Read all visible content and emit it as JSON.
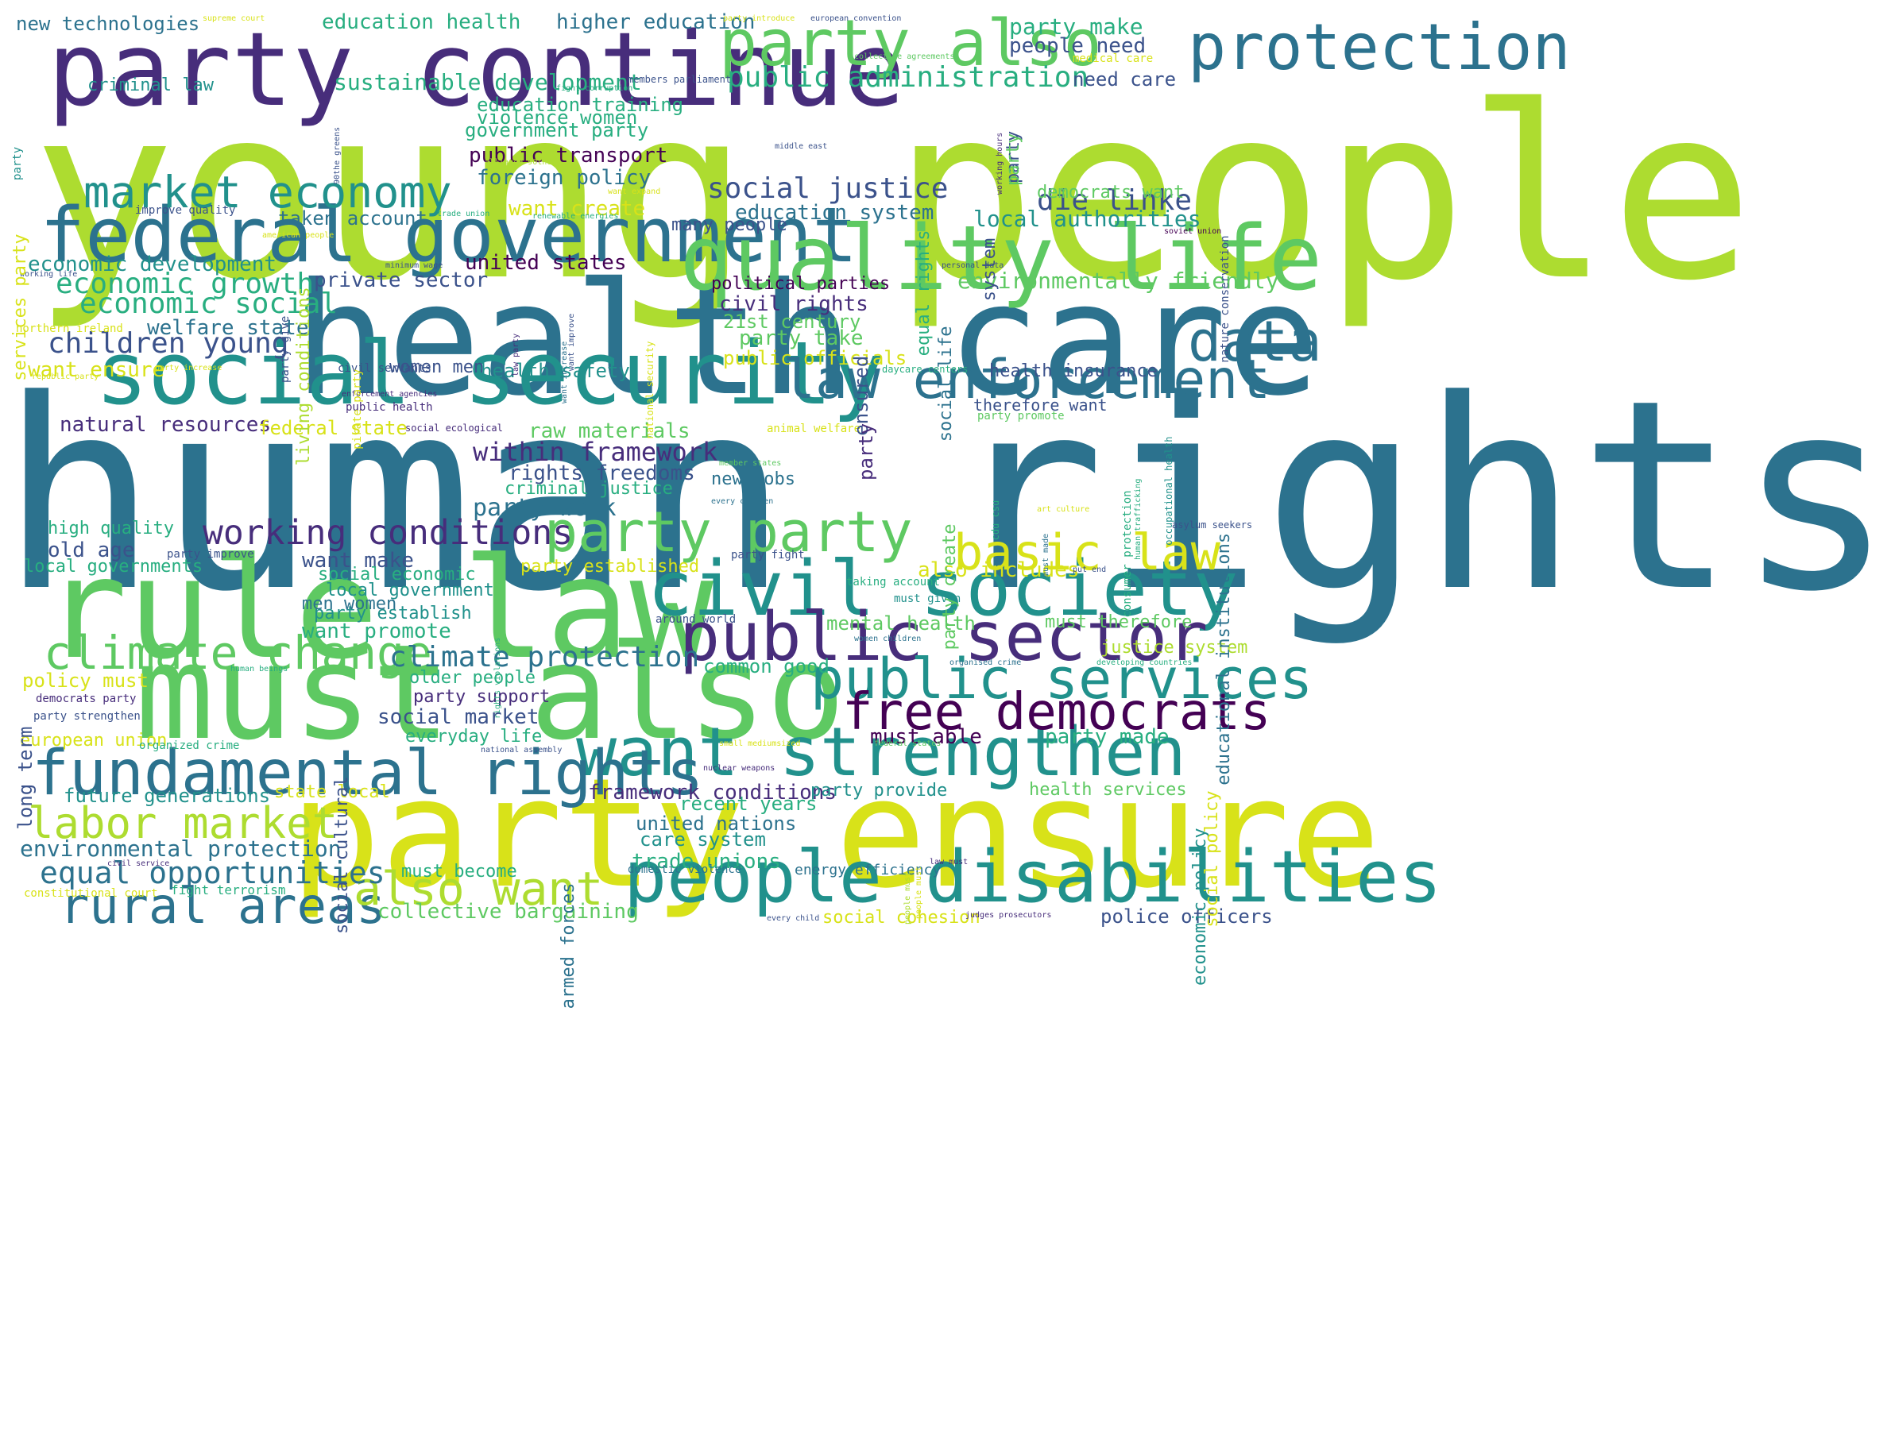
{
  "palette": {
    "p1": "#440154",
    "p2": "#472d7b",
    "p3": "#3b528b",
    "p4": "#2c728e",
    "p5": "#21918c",
    "p6": "#28ae80",
    "p7": "#5ec962",
    "p8": "#addc30",
    "p9": "#d8e219"
  },
  "words": [
    {
      "text": "young people",
      "size": 300,
      "c": "p8"
    },
    {
      "text": "human rights",
      "size": 330,
      "c": "p4"
    },
    {
      "text": "health care",
      "size": 195,
      "c": "p4"
    },
    {
      "text": "party ensure",
      "size": 190,
      "c": "p9"
    },
    {
      "text": "must also",
      "size": 165,
      "c": "p7"
    },
    {
      "text": "rule law",
      "size": 175,
      "c": "p7"
    },
    {
      "text": "party continue",
      "size": 128,
      "c": "p2"
    },
    {
      "text": "social security",
      "size": 110,
      "c": "p5"
    },
    {
      "text": "federal government",
      "size": 95,
      "c": "p4"
    },
    {
      "text": "quality life",
      "size": 112,
      "c": "p7"
    },
    {
      "text": "civil society",
      "size": 95,
      "c": "p5"
    },
    {
      "text": "people disabilities",
      "size": 90,
      "c": "p5"
    },
    {
      "text": "public sector",
      "size": 85,
      "c": "p2"
    },
    {
      "text": "party also",
      "size": 80,
      "c": "p7"
    },
    {
      "text": "want strengthen",
      "size": 85,
      "c": "p5"
    },
    {
      "text": "fundamental rights",
      "size": 78,
      "c": "p4"
    },
    {
      "text": "law enforcement",
      "size": 68,
      "c": "p4"
    },
    {
      "text": "protection",
      "size": 80,
      "c": "p4"
    },
    {
      "text": "data",
      "size": 70,
      "c": "p4"
    },
    {
      "text": "public services",
      "size": 70,
      "c": "p5"
    },
    {
      "text": "free democrats",
      "size": 64,
      "c": "p1"
    },
    {
      "text": "party party",
      "size": 70,
      "c": "p7"
    },
    {
      "text": "basic law",
      "size": 62,
      "c": "p9"
    },
    {
      "text": "market economy",
      "size": 55,
      "c": "p5"
    },
    {
      "text": "climate change",
      "size": 58,
      "c": "p7"
    },
    {
      "text": "rural areas",
      "size": 62,
      "c": "p4"
    },
    {
      "text": "labor market",
      "size": 54,
      "c": "p8"
    },
    {
      "text": "also want",
      "size": 58,
      "c": "p8"
    },
    {
      "text": "working conditions",
      "size": 43,
      "c": "p2"
    },
    {
      "text": "public administration",
      "size": 36,
      "c": "p6"
    },
    {
      "text": "social justice",
      "size": 36,
      "c": "p3"
    },
    {
      "text": "die linke",
      "size": 36,
      "c": "p3"
    },
    {
      "text": "economic growth",
      "size": 36,
      "c": "p6"
    },
    {
      "text": "economic social",
      "size": 36,
      "c": "p6"
    },
    {
      "text": "children young",
      "size": 36,
      "c": "p3"
    },
    {
      "text": "equal opportunities",
      "size": 38,
      "c": "p4"
    },
    {
      "text": "climate protection",
      "size": 36,
      "c": "p4"
    },
    {
      "text": "sustainable development",
      "size": 28,
      "c": "p6"
    },
    {
      "text": "environmentally friendly",
      "size": 28,
      "c": "p7"
    },
    {
      "text": "environmental protection",
      "size": 28,
      "c": "p4"
    },
    {
      "text": "party make",
      "size": 28,
      "c": "p6"
    },
    {
      "text": "people need",
      "size": 26,
      "c": "p3"
    },
    {
      "text": "need care",
      "size": 24,
      "c": "p3"
    },
    {
      "text": "new technologies",
      "size": 24,
      "c": "p4"
    },
    {
      "text": "education health",
      "size": 26,
      "c": "p6"
    },
    {
      "text": "higher education",
      "size": 26,
      "c": "p4"
    },
    {
      "text": "criminal law",
      "size": 22,
      "c": "p5"
    },
    {
      "text": "education training",
      "size": 24,
      "c": "p6"
    },
    {
      "text": "violence women",
      "size": 24,
      "c": "p6"
    },
    {
      "text": "government party",
      "size": 24,
      "c": "p6"
    },
    {
      "text": "public transport",
      "size": 26,
      "c": "p1"
    },
    {
      "text": "foreign policy",
      "size": 26,
      "c": "p4"
    },
    {
      "text": "want create",
      "size": 26,
      "c": "p9"
    },
    {
      "text": "education system",
      "size": 26,
      "c": "p4"
    },
    {
      "text": "local authorities",
      "size": 28,
      "c": "p5"
    },
    {
      "text": "many people",
      "size": 22,
      "c": "p3"
    },
    {
      "text": "taken account",
      "size": 24,
      "c": "p4"
    },
    {
      "text": "economic development",
      "size": 26,
      "c": "p5"
    },
    {
      "text": "united states",
      "size": 26,
      "c": "p1"
    },
    {
      "text": "private sector",
      "size": 26,
      "c": "p3"
    },
    {
      "text": "political parties",
      "size": 22,
      "c": "p1"
    },
    {
      "text": "civil rights",
      "size": 26,
      "c": "p2"
    },
    {
      "text": "21st century",
      "size": 24,
      "c": "p7"
    },
    {
      "text": "party take",
      "size": 26,
      "c": "p7"
    },
    {
      "text": "welfare state",
      "size": 26,
      "c": "p4"
    },
    {
      "text": "public officials",
      "size": 24,
      "c": "p9"
    },
    {
      "text": "want ensure",
      "size": 26,
      "c": "p9"
    },
    {
      "text": "women men",
      "size": 22,
      "c": "p3"
    },
    {
      "text": "health safety",
      "size": 24,
      "c": "p5"
    },
    {
      "text": "health insurance",
      "size": 22,
      "c": "p3"
    },
    {
      "text": "therefore want",
      "size": 20,
      "c": "p3"
    },
    {
      "text": "natural resources",
      "size": 26,
      "c": "p2"
    },
    {
      "text": "federal state",
      "size": 24,
      "c": "p9"
    },
    {
      "text": "raw materials",
      "size": 26,
      "c": "p7"
    },
    {
      "text": "within framework",
      "size": 32,
      "c": "p2"
    },
    {
      "text": "rights freedoms",
      "size": 26,
      "c": "p3"
    },
    {
      "text": "criminal justice",
      "size": 22,
      "c": "p6"
    },
    {
      "text": "new jobs",
      "size": 22,
      "c": "p4"
    },
    {
      "text": "party work",
      "size": 30,
      "c": "p4"
    },
    {
      "text": "high quality",
      "size": 22,
      "c": "p6"
    },
    {
      "text": "old age",
      "size": 26,
      "c": "p3"
    },
    {
      "text": "want make",
      "size": 26,
      "c": "p3"
    },
    {
      "text": "party established",
      "size": 22,
      "c": "p9"
    },
    {
      "text": "also includes",
      "size": 26,
      "c": "p9"
    },
    {
      "text": "local governments",
      "size": 22,
      "c": "p6"
    },
    {
      "text": "social economic",
      "size": 22,
      "c": "p6"
    },
    {
      "text": "local government",
      "size": 22,
      "c": "p5"
    },
    {
      "text": "men women",
      "size": 22,
      "c": "p4"
    },
    {
      "text": "party establish",
      "size": 22,
      "c": "p5"
    },
    {
      "text": "want promote",
      "size": 26,
      "c": "p6"
    },
    {
      "text": "mental health",
      "size": 24,
      "c": "p7"
    },
    {
      "text": "must therefore",
      "size": 22,
      "c": "p7"
    },
    {
      "text": "justice system",
      "size": 22,
      "c": "p8"
    },
    {
      "text": "common good",
      "size": 24,
      "c": "p6"
    },
    {
      "text": "policy must",
      "size": 24,
      "c": "p9"
    },
    {
      "text": "older people",
      "size": 22,
      "c": "p6"
    },
    {
      "text": "party support",
      "size": 22,
      "c": "p2"
    },
    {
      "text": "social market",
      "size": 26,
      "c": "p3"
    },
    {
      "text": "must able",
      "size": 26,
      "c": "p1"
    },
    {
      "text": "party made",
      "size": 26,
      "c": "p6"
    },
    {
      "text": "everyday life",
      "size": 22,
      "c": "p6"
    },
    {
      "text": "european union",
      "size": 22,
      "c": "p9"
    },
    {
      "text": "future generations",
      "size": 24,
      "c": "p5"
    },
    {
      "text": "state local",
      "size": 22,
      "c": "p9"
    },
    {
      "text": "framework conditions",
      "size": 26,
      "c": "p2"
    },
    {
      "text": "party provide",
      "size": 22,
      "c": "p5"
    },
    {
      "text": "health services",
      "size": 22,
      "c": "p7"
    },
    {
      "text": "recent years",
      "size": 24,
      "c": "p6"
    },
    {
      "text": "united nations",
      "size": 24,
      "c": "p4"
    },
    {
      "text": "care system",
      "size": 24,
      "c": "p5"
    },
    {
      "text": "trade unions",
      "size": 26,
      "c": "p6"
    },
    {
      "text": "must become",
      "size": 22,
      "c": "p6"
    },
    {
      "text": "energy efficiency",
      "size": 18,
      "c": "p4"
    },
    {
      "text": "collective bargaining",
      "size": 26,
      "c": "p7"
    },
    {
      "text": "social cohesion",
      "size": 22,
      "c": "p9"
    },
    {
      "text": "police officers",
      "size": 24,
      "c": "p3"
    },
    {
      "text": "fight terrorism",
      "size": 16,
      "c": "p6"
    },
    {
      "text": "constitutional court",
      "size": 14,
      "c": "p9"
    },
    {
      "text": "supreme court",
      "size": 10,
      "c": "p9"
    },
    {
      "text": "party introduce",
      "size": 10,
      "c": "p9"
    },
    {
      "text": "european convention",
      "size": 10,
      "c": "p3"
    },
    {
      "text": "collective agreements",
      "size": 10,
      "c": "p7"
    },
    {
      "text": "medical care",
      "size": 14,
      "c": "p9"
    },
    {
      "text": "members parliament",
      "size": 12,
      "c": "p3"
    },
    {
      "text": "fight corruption",
      "size": 10,
      "c": "p6"
    },
    {
      "text": "alliance 90the",
      "size": 10,
      "c": "p8"
    },
    {
      "text": "middle east",
      "size": 10,
      "c": "p3"
    },
    {
      "text": "want expand",
      "size": 10,
      "c": "p9"
    },
    {
      "text": "improve quality",
      "size": 14,
      "c": "p3"
    },
    {
      "text": "trade union",
      "size": 10,
      "c": "p6"
    },
    {
      "text": "renewable energies",
      "size": 10,
      "c": "p6"
    },
    {
      "text": "soviet union",
      "size": 10,
      "c": "p1"
    },
    {
      "text": "american people",
      "size": 10,
      "c": "p9"
    },
    {
      "text": "minimum wage",
      "size": 10,
      "c": "p3"
    },
    {
      "text": "personal data",
      "size": 10,
      "c": "p3"
    },
    {
      "text": "working life",
      "size": 10,
      "c": "p3"
    },
    {
      "text": "northern ireland",
      "size": 14,
      "c": "p9"
    },
    {
      "text": "republic party",
      "size": 10,
      "c": "p9"
    },
    {
      "text": "party increase",
      "size": 10,
      "c": "p9"
    },
    {
      "text": "civil servants",
      "size": 14,
      "c": "p3"
    },
    {
      "text": "enforcement agencies",
      "size": 10,
      "c": "p2"
    },
    {
      "text": "public health",
      "size": 14,
      "c": "p2"
    },
    {
      "text": "social ecological",
      "size": 12,
      "c": "p2"
    },
    {
      "text": "daycare centers",
      "size": 12,
      "c": "p6"
    },
    {
      "text": "party promote",
      "size": 14,
      "c": "p7"
    },
    {
      "text": "animal welfare",
      "size": 14,
      "c": "p9"
    },
    {
      "text": "member states",
      "size": 10,
      "c": "p7"
    },
    {
      "text": "every citizen",
      "size": 10,
      "c": "p4"
    },
    {
      "text": "art culture",
      "size": 10,
      "c": "p9"
    },
    {
      "text": "asylum seekers",
      "size": 12,
      "c": "p3"
    },
    {
      "text": "party improve",
      "size": 14,
      "c": "p3"
    },
    {
      "text": "party fight",
      "size": 14,
      "c": "p3"
    },
    {
      "text": "taking account",
      "size": 14,
      "c": "p6"
    },
    {
      "text": "must given",
      "size": 14,
      "c": "p5"
    },
    {
      "text": "put end",
      "size": 10,
      "c": "p3"
    },
    {
      "text": "around world",
      "size": 14,
      "c": "p3"
    },
    {
      "text": "women children",
      "size": 10,
      "c": "p4"
    },
    {
      "text": "organised crime",
      "size": 10,
      "c": "p4"
    },
    {
      "text": "developing countries",
      "size": 10,
      "c": "p6"
    },
    {
      "text": "human beings",
      "size": 10,
      "c": "p6"
    },
    {
      "text": "democrats party",
      "size": 14,
      "c": "p2"
    },
    {
      "text": "party strengthen",
      "size": 14,
      "c": "p3"
    },
    {
      "text": "organized crime",
      "size": 14,
      "c": "p6"
    },
    {
      "text": "national assembly",
      "size": 10,
      "c": "p3"
    },
    {
      "text": "small mediumsized",
      "size": 10,
      "c": "p9"
    },
    {
      "text": "federal states",
      "size": 10,
      "c": "p7"
    },
    {
      "text": "nuclear weapons",
      "size": 10,
      "c": "p2"
    },
    {
      "text": "domestic violence",
      "size": 14,
      "c": "p4"
    },
    {
      "text": "civil service",
      "size": 10,
      "c": "p2"
    },
    {
      "text": "law must",
      "size": 10,
      "c": "p2"
    },
    {
      "text": "every child",
      "size": 10,
      "c": "p3"
    },
    {
      "text": "judges prosecutors",
      "size": 10,
      "c": "p2"
    },
    {
      "text": "democrats want",
      "size": 22,
      "c": "p7"
    },
    {
      "text": "living conditions",
      "size": 22,
      "c": "p8",
      "v": true
    },
    {
      "text": "90the greens",
      "size": 10,
      "c": "p3",
      "v": true
    },
    {
      "text": "services party",
      "size": 22,
      "c": "p9",
      "v": true
    },
    {
      "text": "party give",
      "size": 14,
      "c": "p3",
      "v": true
    },
    {
      "text": "national security",
      "size": 12,
      "c": "p9",
      "v": true
    },
    {
      "text": "want improve",
      "size": 10,
      "c": "p3",
      "v": true
    },
    {
      "text": "law party",
      "size": 10,
      "c": "p2",
      "v": true
    },
    {
      "text": "pirate party",
      "size": 14,
      "c": "p9",
      "v": true
    },
    {
      "text": "want increase",
      "size": 10,
      "c": "p4",
      "v": true
    },
    {
      "text": "ensured",
      "size": 24,
      "c": "p3",
      "v": true
    },
    {
      "text": "party",
      "size": 24,
      "c": "p2",
      "v": true
    },
    {
      "text": "party create",
      "size": 22,
      "c": "p7",
      "v": true
    },
    {
      "text": "cdu csu",
      "size": 12,
      "c": "p6",
      "v": true
    },
    {
      "text": "system",
      "size": 22,
      "c": "p3",
      "v": true
    },
    {
      "text": "equal rights",
      "size": 22,
      "c": "p6",
      "v": true
    },
    {
      "text": "social life",
      "size": 22,
      "c": "p4",
      "v": true
    },
    {
      "text": "party",
      "size": 22,
      "c": "p3",
      "v": true
    },
    {
      "text": "working hours",
      "size": 10,
      "c": "p2",
      "v": true
    },
    {
      "text": "consumer protection",
      "size": 14,
      "c": "p6",
      "v": true
    },
    {
      "text": "human trafficking",
      "size": 10,
      "c": "p6",
      "v": true
    },
    {
      "text": "occupational health",
      "size": 12,
      "c": "p5",
      "v": true
    },
    {
      "text": "educational institutions",
      "size": 22,
      "c": "p4",
      "v": true
    },
    {
      "text": "nature conservation",
      "size": 14,
      "c": "p3",
      "v": true
    },
    {
      "text": "economic policy",
      "size": 22,
      "c": "p5",
      "v": true
    },
    {
      "text": "social policy",
      "size": 22,
      "c": "p9",
      "v": true
    },
    {
      "text": "long term",
      "size": 24,
      "c": "p3",
      "v": true
    },
    {
      "text": "social cultural",
      "size": 22,
      "c": "p3",
      "v": true
    },
    {
      "text": "armed forces",
      "size": 22,
      "c": "p4",
      "v": true
    },
    {
      "text": "rights violations",
      "size": 10,
      "c": "p6",
      "v": true
    },
    {
      "text": "people must",
      "size": 10,
      "c": "p8",
      "v": true
    },
    {
      "text": "people must",
      "size": 10,
      "c": "p9",
      "v": true
    },
    {
      "text": "must made",
      "size": 10,
      "c": "p4",
      "v": true
    },
    {
      "text": "party",
      "size": 22,
      "c": "p7",
      "v": true
    },
    {
      "text": "party",
      "size": 14,
      "c": "p5",
      "v": true
    }
  ]
}
